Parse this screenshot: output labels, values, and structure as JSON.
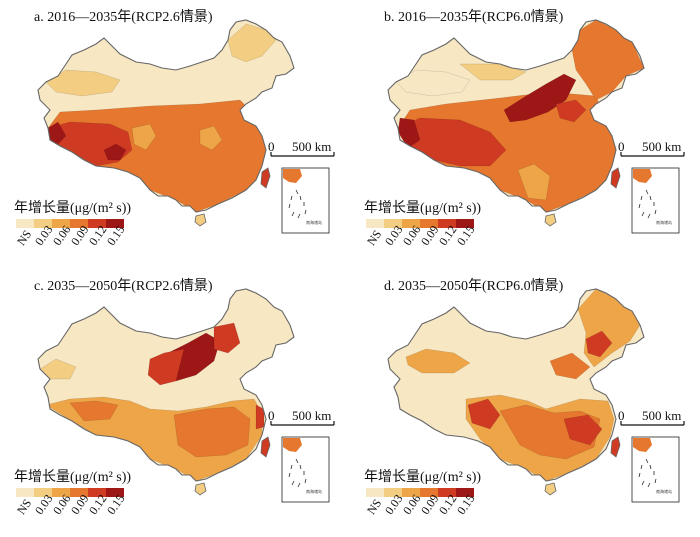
{
  "legend": {
    "title": "年增长量(μg/(m² s))",
    "labels": [
      "NS",
      "0.03",
      "0.06",
      "0.09",
      "0.12",
      "0.15"
    ],
    "colors": [
      "#f7e7c3",
      "#f2cd82",
      "#eea548",
      "#e6772e",
      "#cf3a22",
      "#9e1717"
    ]
  },
  "scale_bar": {
    "zero": "0",
    "value": "500 km"
  },
  "inset_label": "南海诸岛",
  "panels": [
    {
      "title": "a. 2016—2035年(RCP2.6情景)"
    },
    {
      "title": "b. 2016—2035年(RCP6.0情景)"
    },
    {
      "title": "c. 2035—2050年(RCP2.6情景)"
    },
    {
      "title": "d. 2035—2050年(RCP6.0情景)"
    }
  ]
}
